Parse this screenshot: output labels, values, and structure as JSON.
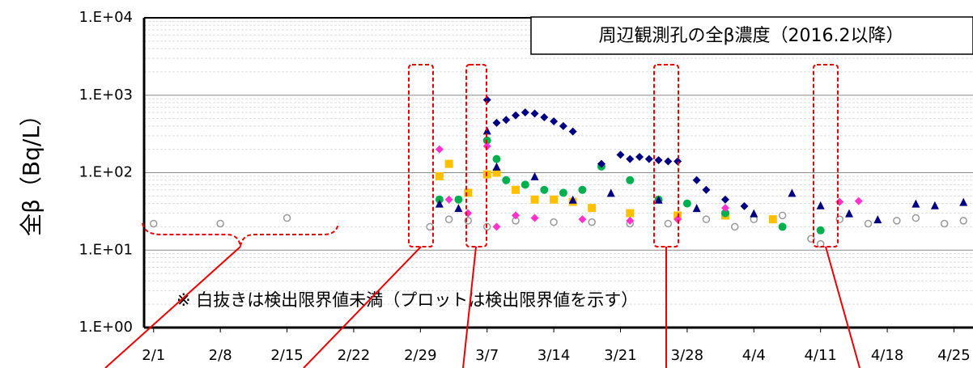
{
  "chart_data": {
    "type": "scatter",
    "title": "周辺観測孔の全β濃度（2016.2以降）",
    "annotation": "※ 白抜きは検出限界値未満（プロットは検出限界値を示す）",
    "y_label": "全β（Bq/L）",
    "log_y": true,
    "grid": true,
    "ylim": [
      1,
      10000
    ],
    "yticks": [
      {
        "value": 1,
        "label": "1.E+00"
      },
      {
        "value": 10,
        "label": "1.E+01"
      },
      {
        "value": 100,
        "label": "1.E+02"
      },
      {
        "value": 1000,
        "label": "1.E+03"
      },
      {
        "value": 10000,
        "label": "1.E+04"
      }
    ],
    "xlim": [
      -1,
      86
    ],
    "xticks": [
      {
        "value": 0,
        "label": "2/1"
      },
      {
        "value": 7,
        "label": "2/8"
      },
      {
        "value": 14,
        "label": "2/15"
      },
      {
        "value": 21,
        "label": "2/22"
      },
      {
        "value": 28,
        "label": "2/29"
      },
      {
        "value": 35,
        "label": "3/7"
      },
      {
        "value": 42,
        "label": "3/14"
      },
      {
        "value": 49,
        "label": "3/21"
      },
      {
        "value": 56,
        "label": "3/28"
      },
      {
        "value": 63,
        "label": "4/4"
      },
      {
        "value": 70,
        "label": "4/11"
      },
      {
        "value": 77,
        "label": "4/18"
      },
      {
        "value": 84,
        "label": "4/25"
      }
    ],
    "series": [
      {
        "marker": "circle-open",
        "color": "#999999",
        "x": [
          0,
          7,
          14,
          29,
          31,
          33,
          35,
          38,
          42,
          46,
          50,
          54,
          58,
          61,
          63,
          66,
          69,
          70,
          72,
          75,
          78,
          80,
          83,
          85
        ],
        "values": [
          22,
          22,
          26,
          20,
          25,
          24,
          20,
          24,
          23,
          23,
          22,
          22,
          25,
          20,
          25,
          28,
          14,
          12,
          25,
          22,
          24,
          26,
          22,
          24
        ]
      },
      {
        "marker": "square",
        "color": "#ffc000",
        "x": [
          30,
          31,
          33,
          35,
          36,
          38,
          40,
          42,
          44,
          46,
          50,
          55,
          60,
          65
        ],
        "values": [
          90,
          130,
          55,
          95,
          100,
          60,
          45,
          45,
          42,
          35,
          30,
          28,
          28,
          25
        ]
      },
      {
        "marker": "circle",
        "color": "#00b050",
        "x": [
          30,
          32,
          35,
          36,
          37,
          39,
          41,
          43,
          45,
          47,
          50,
          53,
          56,
          60,
          66,
          70
        ],
        "values": [
          45,
          45,
          260,
          150,
          80,
          70,
          60,
          55,
          60,
          120,
          80,
          45,
          40,
          30,
          20,
          18
        ]
      },
      {
        "marker": "diamond",
        "color": "#ff33cc",
        "x": [
          30,
          31,
          33,
          35,
          36,
          38,
          40,
          45,
          50,
          55,
          60,
          72,
          74
        ],
        "values": [
          200,
          45,
          30,
          220,
          20,
          28,
          26,
          25,
          24,
          25,
          35,
          42,
          43
        ]
      },
      {
        "marker": "triangle",
        "color": "#000080",
        "x": [
          30,
          32,
          35,
          36,
          40,
          44,
          48,
          53,
          57,
          63,
          67,
          70,
          73,
          76,
          80,
          82,
          85
        ],
        "values": [
          40,
          35,
          350,
          120,
          90,
          45,
          55,
          45,
          35,
          30,
          55,
          38,
          30,
          25,
          40,
          38,
          42
        ]
      },
      {
        "marker": "diamond",
        "color": "#000080",
        "x": [
          35,
          36,
          37,
          38,
          39,
          40,
          41,
          42,
          43,
          44,
          47,
          49,
          50,
          51,
          52,
          53,
          54,
          55,
          57,
          58,
          60,
          62
        ],
        "values": [
          870,
          440,
          480,
          550,
          600,
          580,
          520,
          460,
          400,
          340,
          130,
          170,
          150,
          160,
          150,
          145,
          140,
          140,
          80,
          60,
          45,
          37
        ]
      }
    ]
  }
}
